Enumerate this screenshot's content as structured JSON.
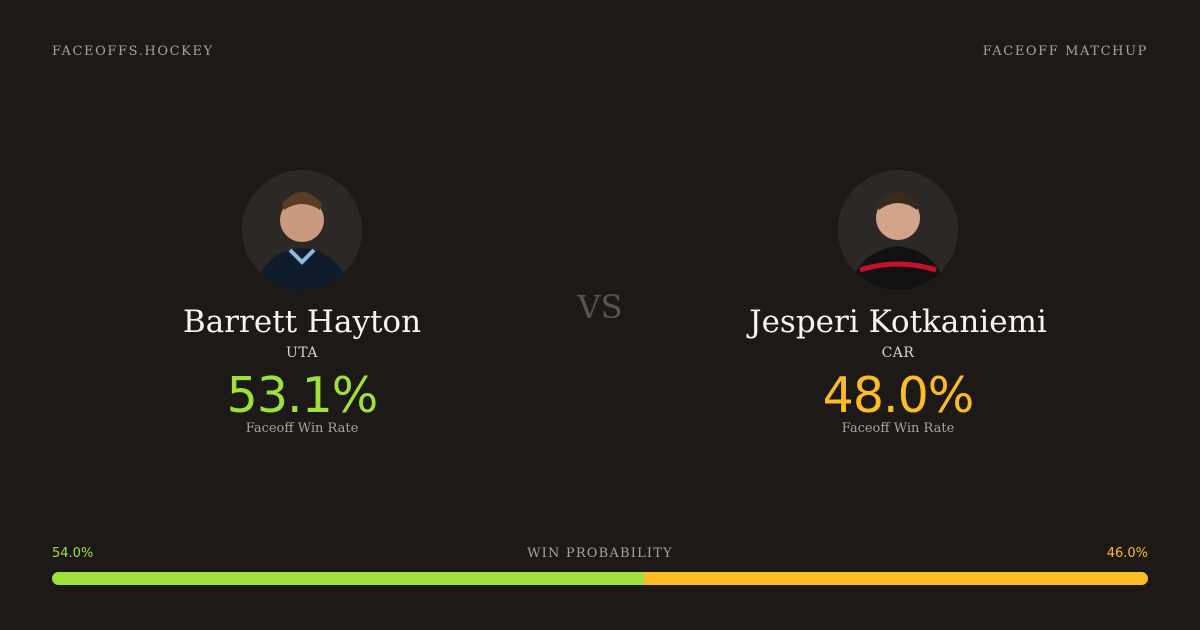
{
  "header": {
    "brand": "FACEOFFS.HOCKEY",
    "label": "FACEOFF MATCHUP"
  },
  "vs": "VS",
  "players": [
    {
      "name": "Barrett Hayton",
      "team": "UTA",
      "win_rate": "53.1%",
      "rate_label": "Faceoff Win Rate",
      "color": "#9fe03a"
    },
    {
      "name": "Jesperi Kotkaniemi",
      "team": "CAR",
      "win_rate": "48.0%",
      "rate_label": "Faceoff Win Rate",
      "color": "#fbbd23"
    }
  ],
  "probability": {
    "label": "WIN PROBABILITY",
    "left": {
      "value": 54.0,
      "label": "54.0%"
    },
    "right": {
      "value": 46.0,
      "label": "46.0%"
    }
  }
}
